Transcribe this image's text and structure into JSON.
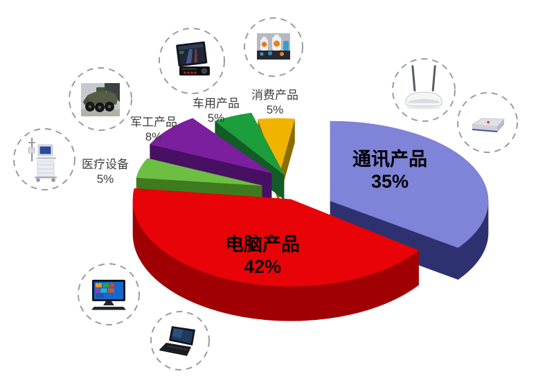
{
  "page": {
    "background": "#ffffff"
  },
  "chart_data": {
    "type": "pie",
    "style": "3d-exploded",
    "title": "",
    "unit": "%",
    "legend": "none",
    "labels_on_chart": true,
    "slices": [
      {
        "key": "communication",
        "label": "通讯产品",
        "value": 35,
        "pct": "35%",
        "color": "#7f84d8",
        "side_color": "#2e3170",
        "label_color": "#000000"
      },
      {
        "key": "computer",
        "label": "电脑产品",
        "value": 42,
        "pct": "42%",
        "color": "#e80308",
        "side_color": "#a00004",
        "label_color": "#000000"
      },
      {
        "key": "medical",
        "label": "医疗设备",
        "value": 5,
        "pct": "5%",
        "color": "#6cbf42",
        "side_color": "#3f7a1e",
        "label_color": "#3d3d3d"
      },
      {
        "key": "military",
        "label": "军工产品",
        "value": 8,
        "pct": "8%",
        "color": "#7c1f9f",
        "side_color": "#471063",
        "label_color": "#3d3d3d"
      },
      {
        "key": "automotive",
        "label": "车用产品",
        "value": 5,
        "pct": "5%",
        "color": "#1c9e3c",
        "side_color": "#145c26",
        "label_color": "#3d3d3d"
      },
      {
        "key": "consumer",
        "label": "消费产品",
        "value": 5,
        "pct": "5%",
        "color": "#f0b400",
        "side_color": "#8a6d00",
        "label_color": "#3d3d3d"
      }
    ],
    "callout_icons": [
      "car-stereo-image",
      "consumer-toys-image",
      "military-vehicle-image",
      "medical-equipment-image",
      "wireless-router-image",
      "modem-image",
      "desktop-pc-image",
      "laptop-image"
    ],
    "callout_circle_color": "#9b9b9b"
  }
}
